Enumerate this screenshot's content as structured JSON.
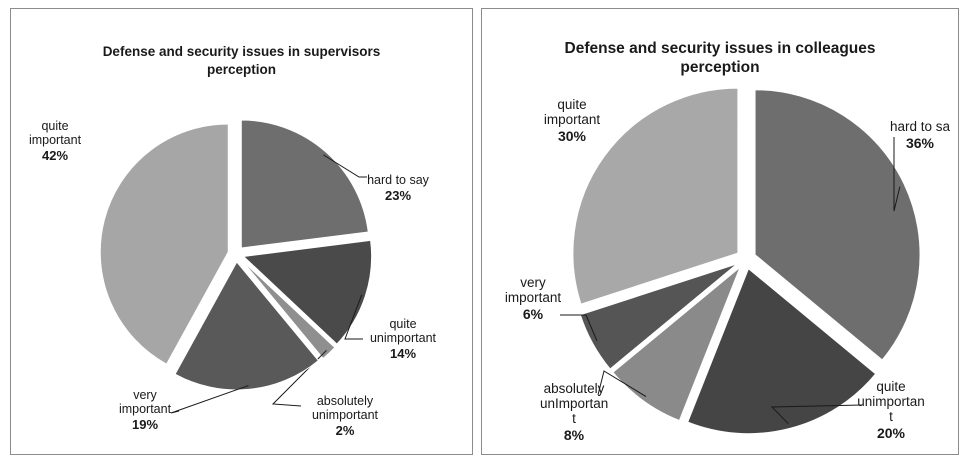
{
  "chart_data": [
    {
      "type": "pie",
      "title": "Defense and security issues in supervisors perception",
      "slices": [
        {
          "label": "hard to say",
          "value": 23,
          "value_label": "23%",
          "color": "#6e6e6e"
        },
        {
          "label": "quite unimportant",
          "value": 14,
          "value_label": "14%",
          "color": "#4a4a4a"
        },
        {
          "label": "absolutely unimportant",
          "value": 2,
          "value_label": "2%",
          "color": "#8f8f8f"
        },
        {
          "label": "very important",
          "value": 19,
          "value_label": "19%",
          "color": "#595959"
        },
        {
          "label": "quite important",
          "value": 42,
          "value_label": "42%",
          "color": "#a6a6a6"
        }
      ]
    },
    {
      "type": "pie",
      "title": "Defense and security issues in colleagues perception",
      "slices": [
        {
          "label": "hard to sa",
          "value": 36,
          "value_label": "36%",
          "color": "#6e6e6e"
        },
        {
          "label": "quite unimportan t",
          "value": 20,
          "value_label": "20%",
          "color": "#454545"
        },
        {
          "label": "absolutely unImportan t",
          "value": 8,
          "value_label": "8%",
          "color": "#8a8a8a"
        },
        {
          "label": "very important",
          "value": 6,
          "value_label": "6%",
          "color": "#555555"
        },
        {
          "label": "quite important",
          "value": 30,
          "value_label": "30%",
          "color": "#a8a8a8"
        }
      ]
    }
  ]
}
